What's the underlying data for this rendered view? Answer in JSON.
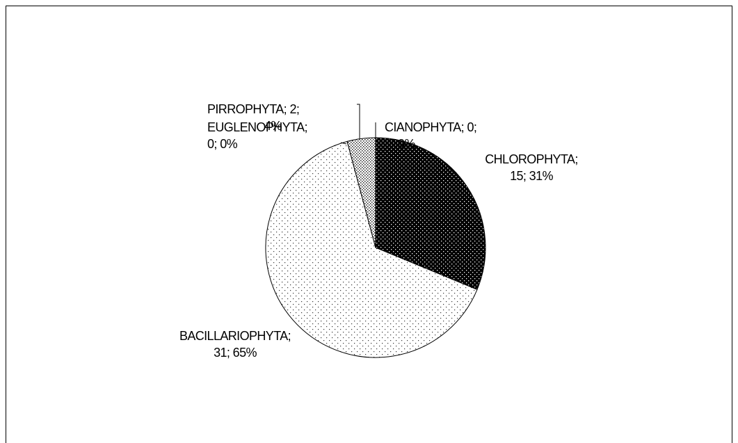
{
  "chart_data": {
    "type": "pie",
    "values": [
      15,
      31,
      0,
      2,
      0
    ],
    "value_labels": [
      [
        "CHLOROPHYTA;",
        "15; 31%"
      ],
      [
        "BACILLARIOPHYTA;",
        "31; 65%"
      ],
      [
        "EUGLENOPHYTA;",
        "0; 0%"
      ],
      [
        "PIRROPHYTA; 2;",
        "4%"
      ],
      [
        "CIANOPHYTA; 0;",
        "0%"
      ]
    ]
  }
}
